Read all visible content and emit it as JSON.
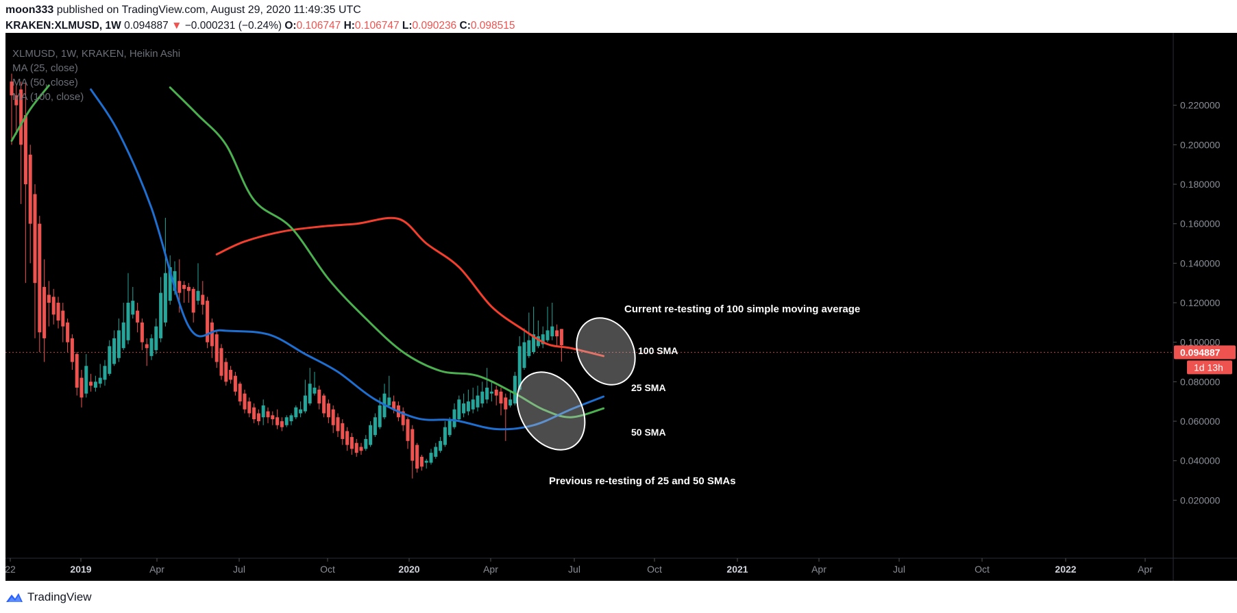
{
  "header": {
    "author": "moon333",
    "published_text": "published on TradingView.com, August 29, 2020 11:49:35 UTC",
    "symbol": "KRAKEN:XLMUSD,",
    "timeframe": "1W",
    "last_price": "0.094887",
    "change_arrow": "▼",
    "change": "−0.000231 (−0.24%)",
    "open_label": "O:",
    "open": "0.106747",
    "high_label": "H:",
    "high": "0.106747",
    "low_label": "L:",
    "low": "0.090236",
    "close_label": "C:",
    "close": "0.098515"
  },
  "footer": {
    "brand": "TradingView"
  },
  "colors": {
    "background": "#000000",
    "up": "#26a69a",
    "down": "#ef5350",
    "ma25": "#1e6fd0",
    "ma50": "#4caf50",
    "ma100": "#f23f2e"
  },
  "chart_data": {
    "type": "candlestick",
    "style": "Heikin Ashi",
    "legend": [
      "XLMUSD, 1W, KRAKEN, Heikin Ashi",
      "MA (25, close)",
      "MA (50, close)",
      "MA (100, close)"
    ],
    "x_ticks": [
      "22",
      "2019",
      "Apr",
      "Jul",
      "Oct",
      "2020",
      "Apr",
      "Jul",
      "Oct",
      "2021",
      "Apr",
      "Jul",
      "Oct",
      "2022",
      "Apr"
    ],
    "y_ticks": [
      "0.220000",
      "0.200000",
      "0.180000",
      "0.160000",
      "0.140000",
      "0.120000",
      "0.100000",
      "0.080000",
      "0.060000",
      "0.040000",
      "0.020000"
    ],
    "ylim": [
      0.0,
      0.228
    ],
    "price_label": "0.094887",
    "countdown_label": "1d 13h",
    "current_price": 0.094887,
    "candles": [
      {
        "o": 0.232,
        "h": 0.236,
        "l": 0.2,
        "c": 0.225
      },
      {
        "o": 0.225,
        "h": 0.23,
        "l": 0.205,
        "c": 0.22
      },
      {
        "o": 0.228,
        "h": 0.232,
        "l": 0.17,
        "c": 0.2
      },
      {
        "o": 0.215,
        "h": 0.232,
        "l": 0.13,
        "c": 0.18
      },
      {
        "o": 0.195,
        "h": 0.2,
        "l": 0.14,
        "c": 0.16
      },
      {
        "o": 0.175,
        "h": 0.18,
        "l": 0.102,
        "c": 0.13
      },
      {
        "o": 0.16,
        "h": 0.164,
        "l": 0.095,
        "c": 0.105
      },
      {
        "o": 0.128,
        "h": 0.142,
        "l": 0.09,
        "c": 0.102
      },
      {
        "o": 0.124,
        "h": 0.131,
        "l": 0.108,
        "c": 0.12
      },
      {
        "o": 0.123,
        "h": 0.127,
        "l": 0.109,
        "c": 0.114
      },
      {
        "o": 0.12,
        "h": 0.123,
        "l": 0.107,
        "c": 0.111
      },
      {
        "o": 0.116,
        "h": 0.12,
        "l": 0.1,
        "c": 0.108
      },
      {
        "o": 0.11,
        "h": 0.112,
        "l": 0.095,
        "c": 0.1
      },
      {
        "o": 0.102,
        "h": 0.104,
        "l": 0.086,
        "c": 0.09
      },
      {
        "o": 0.094,
        "h": 0.095,
        "l": 0.073,
        "c": 0.077
      },
      {
        "o": 0.082,
        "h": 0.086,
        "l": 0.067,
        "c": 0.072
      },
      {
        "o": 0.074,
        "h": 0.094,
        "l": 0.072,
        "c": 0.088
      },
      {
        "o": 0.08,
        "h": 0.084,
        "l": 0.075,
        "c": 0.078
      },
      {
        "o": 0.077,
        "h": 0.083,
        "l": 0.075,
        "c": 0.08
      },
      {
        "o": 0.079,
        "h": 0.089,
        "l": 0.077,
        "c": 0.082
      },
      {
        "o": 0.081,
        "h": 0.091,
        "l": 0.078,
        "c": 0.088
      },
      {
        "o": 0.084,
        "h": 0.101,
        "l": 0.083,
        "c": 0.098
      },
      {
        "o": 0.089,
        "h": 0.106,
        "l": 0.088,
        "c": 0.102
      },
      {
        "o": 0.092,
        "h": 0.112,
        "l": 0.09,
        "c": 0.106
      },
      {
        "o": 0.097,
        "h": 0.12,
        "l": 0.096,
        "c": 0.11
      },
      {
        "o": 0.101,
        "h": 0.135,
        "l": 0.099,
        "c": 0.12
      },
      {
        "o": 0.114,
        "h": 0.128,
        "l": 0.112,
        "c": 0.121
      },
      {
        "o": 0.116,
        "h": 0.12,
        "l": 0.105,
        "c": 0.11
      },
      {
        "o": 0.11,
        "h": 0.112,
        "l": 0.096,
        "c": 0.1
      },
      {
        "o": 0.099,
        "h": 0.102,
        "l": 0.088,
        "c": 0.097
      },
      {
        "o": 0.093,
        "h": 0.104,
        "l": 0.091,
        "c": 0.102
      },
      {
        "o": 0.096,
        "h": 0.112,
        "l": 0.094,
        "c": 0.108
      },
      {
        "o": 0.102,
        "h": 0.133,
        "l": 0.1,
        "c": 0.125
      },
      {
        "o": 0.11,
        "h": 0.163,
        "l": 0.108,
        "c": 0.135
      },
      {
        "o": 0.121,
        "h": 0.144,
        "l": 0.119,
        "c": 0.138
      },
      {
        "o": 0.126,
        "h": 0.141,
        "l": 0.124,
        "c": 0.136
      },
      {
        "o": 0.131,
        "h": 0.142,
        "l": 0.115,
        "c": 0.125
      },
      {
        "o": 0.129,
        "h": 0.131,
        "l": 0.12,
        "c": 0.127
      },
      {
        "o": 0.128,
        "h": 0.13,
        "l": 0.12,
        "c": 0.126
      },
      {
        "o": 0.127,
        "h": 0.128,
        "l": 0.11,
        "c": 0.115
      },
      {
        "o": 0.121,
        "h": 0.14,
        "l": 0.119,
        "c": 0.126
      },
      {
        "o": 0.124,
        "h": 0.131,
        "l": 0.114,
        "c": 0.119
      },
      {
        "o": 0.121,
        "h": 0.123,
        "l": 0.097,
        "c": 0.1
      },
      {
        "o": 0.11,
        "h": 0.112,
        "l": 0.092,
        "c": 0.098
      },
      {
        "o": 0.104,
        "h": 0.106,
        "l": 0.087,
        "c": 0.09
      },
      {
        "o": 0.097,
        "h": 0.099,
        "l": 0.081,
        "c": 0.083
      },
      {
        "o": 0.09,
        "h": 0.092,
        "l": 0.078,
        "c": 0.08
      },
      {
        "o": 0.086,
        "h": 0.088,
        "l": 0.079,
        "c": 0.081
      },
      {
        "o": 0.083,
        "h": 0.085,
        "l": 0.073,
        "c": 0.075
      },
      {
        "o": 0.079,
        "h": 0.08,
        "l": 0.068,
        "c": 0.07
      },
      {
        "o": 0.074,
        "h": 0.076,
        "l": 0.064,
        "c": 0.066
      },
      {
        "o": 0.07,
        "h": 0.072,
        "l": 0.062,
        "c": 0.064
      },
      {
        "o": 0.067,
        "h": 0.069,
        "l": 0.059,
        "c": 0.061
      },
      {
        "o": 0.064,
        "h": 0.066,
        "l": 0.058,
        "c": 0.06
      },
      {
        "o": 0.062,
        "h": 0.071,
        "l": 0.058,
        "c": 0.068
      },
      {
        "o": 0.065,
        "h": 0.067,
        "l": 0.059,
        "c": 0.062
      },
      {
        "o": 0.063,
        "h": 0.065,
        "l": 0.058,
        "c": 0.061
      },
      {
        "o": 0.062,
        "h": 0.066,
        "l": 0.056,
        "c": 0.058
      },
      {
        "o": 0.06,
        "h": 0.062,
        "l": 0.055,
        "c": 0.057
      },
      {
        "o": 0.058,
        "h": 0.063,
        "l": 0.057,
        "c": 0.062
      },
      {
        "o": 0.06,
        "h": 0.064,
        "l": 0.058,
        "c": 0.063
      },
      {
        "o": 0.062,
        "h": 0.068,
        "l": 0.061,
        "c": 0.067
      },
      {
        "o": 0.064,
        "h": 0.07,
        "l": 0.062,
        "c": 0.066
      },
      {
        "o": 0.065,
        "h": 0.081,
        "l": 0.064,
        "c": 0.073
      },
      {
        "o": 0.069,
        "h": 0.087,
        "l": 0.068,
        "c": 0.079
      },
      {
        "o": 0.074,
        "h": 0.085,
        "l": 0.073,
        "c": 0.077
      },
      {
        "o": 0.076,
        "h": 0.078,
        "l": 0.066,
        "c": 0.069
      },
      {
        "o": 0.073,
        "h": 0.074,
        "l": 0.062,
        "c": 0.064
      },
      {
        "o": 0.069,
        "h": 0.071,
        "l": 0.059,
        "c": 0.062
      },
      {
        "o": 0.066,
        "h": 0.068,
        "l": 0.054,
        "c": 0.058
      },
      {
        "o": 0.062,
        "h": 0.064,
        "l": 0.052,
        "c": 0.055
      },
      {
        "o": 0.059,
        "h": 0.061,
        "l": 0.048,
        "c": 0.051
      },
      {
        "o": 0.055,
        "h": 0.057,
        "l": 0.045,
        "c": 0.048
      },
      {
        "o": 0.052,
        "h": 0.054,
        "l": 0.043,
        "c": 0.046
      },
      {
        "o": 0.049,
        "h": 0.051,
        "l": 0.042,
        "c": 0.044
      },
      {
        "o": 0.047,
        "h": 0.049,
        "l": 0.043,
        "c": 0.045
      },
      {
        "o": 0.046,
        "h": 0.053,
        "l": 0.045,
        "c": 0.051
      },
      {
        "o": 0.048,
        "h": 0.06,
        "l": 0.047,
        "c": 0.058
      },
      {
        "o": 0.053,
        "h": 0.064,
        "l": 0.052,
        "c": 0.062
      },
      {
        "o": 0.057,
        "h": 0.072,
        "l": 0.056,
        "c": 0.068
      },
      {
        "o": 0.062,
        "h": 0.079,
        "l": 0.061,
        "c": 0.074
      },
      {
        "o": 0.068,
        "h": 0.083,
        "l": 0.067,
        "c": 0.072
      },
      {
        "o": 0.07,
        "h": 0.073,
        "l": 0.064,
        "c": 0.066
      },
      {
        "o": 0.068,
        "h": 0.07,
        "l": 0.06,
        "c": 0.062
      },
      {
        "o": 0.065,
        "h": 0.067,
        "l": 0.055,
        "c": 0.058
      },
      {
        "o": 0.061,
        "h": 0.062,
        "l": 0.046,
        "c": 0.05
      },
      {
        "o": 0.056,
        "h": 0.058,
        "l": 0.031,
        "c": 0.04
      },
      {
        "o": 0.048,
        "h": 0.049,
        "l": 0.034,
        "c": 0.036
      },
      {
        "o": 0.042,
        "h": 0.043,
        "l": 0.035,
        "c": 0.037
      },
      {
        "o": 0.039,
        "h": 0.041,
        "l": 0.036,
        "c": 0.04
      },
      {
        "o": 0.039,
        "h": 0.046,
        "l": 0.038,
        "c": 0.044
      },
      {
        "o": 0.042,
        "h": 0.049,
        "l": 0.041,
        "c": 0.047
      },
      {
        "o": 0.045,
        "h": 0.052,
        "l": 0.044,
        "c": 0.05
      },
      {
        "o": 0.048,
        "h": 0.06,
        "l": 0.047,
        "c": 0.057
      },
      {
        "o": 0.053,
        "h": 0.062,
        "l": 0.052,
        "c": 0.061
      },
      {
        "o": 0.057,
        "h": 0.069,
        "l": 0.056,
        "c": 0.066
      },
      {
        "o": 0.061,
        "h": 0.073,
        "l": 0.06,
        "c": 0.071
      },
      {
        "o": 0.064,
        "h": 0.074,
        "l": 0.062,
        "c": 0.069
      },
      {
        "o": 0.065,
        "h": 0.076,
        "l": 0.063,
        "c": 0.07
      },
      {
        "o": 0.066,
        "h": 0.077,
        "l": 0.064,
        "c": 0.071
      },
      {
        "o": 0.067,
        "h": 0.078,
        "l": 0.065,
        "c": 0.073
      },
      {
        "o": 0.069,
        "h": 0.08,
        "l": 0.067,
        "c": 0.075
      },
      {
        "o": 0.071,
        "h": 0.087,
        "l": 0.069,
        "c": 0.077
      },
      {
        "o": 0.074,
        "h": 0.08,
        "l": 0.07,
        "c": 0.075
      },
      {
        "o": 0.076,
        "h": 0.078,
        "l": 0.068,
        "c": 0.073
      },
      {
        "o": 0.075,
        "h": 0.077,
        "l": 0.063,
        "c": 0.069
      },
      {
        "o": 0.072,
        "h": 0.074,
        "l": 0.05,
        "c": 0.066
      },
      {
        "o": 0.068,
        "h": 0.075,
        "l": 0.067,
        "c": 0.071
      },
      {
        "o": 0.069,
        "h": 0.085,
        "l": 0.068,
        "c": 0.083
      },
      {
        "o": 0.076,
        "h": 0.103,
        "l": 0.075,
        "c": 0.098
      },
      {
        "o": 0.087,
        "h": 0.107,
        "l": 0.086,
        "c": 0.1
      },
      {
        "o": 0.093,
        "h": 0.115,
        "l": 0.092,
        "c": 0.101
      },
      {
        "o": 0.095,
        "h": 0.118,
        "l": 0.094,
        "c": 0.104
      },
      {
        "o": 0.098,
        "h": 0.111,
        "l": 0.097,
        "c": 0.103
      },
      {
        "o": 0.099,
        "h": 0.108,
        "l": 0.097,
        "c": 0.104
      },
      {
        "o": 0.101,
        "h": 0.118,
        "l": 0.1,
        "c": 0.106
      },
      {
        "o": 0.103,
        "h": 0.12,
        "l": 0.101,
        "c": 0.108
      },
      {
        "o": 0.106,
        "h": 0.109,
        "l": 0.098,
        "c": 0.103
      },
      {
        "o": 0.1067,
        "h": 0.1067,
        "l": 0.0902,
        "c": 0.0985
      }
    ],
    "ma25_knots": [
      [
        17,
        0.228
      ],
      [
        23,
        0.206
      ],
      [
        30,
        0.168
      ],
      [
        38,
        0.108
      ],
      [
        45,
        0.106
      ],
      [
        55,
        0.104
      ],
      [
        63,
        0.094
      ],
      [
        70,
        0.085
      ],
      [
        78,
        0.071
      ],
      [
        87,
        0.0615
      ],
      [
        95,
        0.0605
      ],
      [
        104,
        0.056
      ],
      [
        112,
        0.058
      ],
      [
        120,
        0.066
      ],
      [
        127,
        0.0725
      ]
    ],
    "ma50_knots": [
      [
        34,
        0.229
      ],
      [
        40,
        0.215
      ],
      [
        46,
        0.2
      ],
      [
        52,
        0.172
      ],
      [
        60,
        0.158
      ],
      [
        68,
        0.132
      ],
      [
        76,
        0.112
      ],
      [
        84,
        0.095
      ],
      [
        92,
        0.0855
      ],
      [
        100,
        0.083
      ],
      [
        108,
        0.074
      ],
      [
        114,
        0.066
      ],
      [
        120,
        0.062
      ],
      [
        127,
        0.0665
      ]
    ],
    "ma50_lead_knots": [
      [
        0,
        0.202
      ],
      [
        4,
        0.218
      ],
      [
        8,
        0.23
      ]
    ],
    "ma100_knots": [
      [
        44,
        0.1445
      ],
      [
        50,
        0.151
      ],
      [
        58,
        0.156
      ],
      [
        66,
        0.1585
      ],
      [
        74,
        0.16
      ],
      [
        83,
        0.1625
      ],
      [
        89,
        0.15
      ],
      [
        96,
        0.138
      ],
      [
        103,
        0.118
      ],
      [
        110,
        0.106
      ],
      [
        115,
        0.099
      ],
      [
        120,
        0.097
      ],
      [
        127,
        0.093
      ]
    ],
    "annotations": [
      {
        "text": "Current re-testing of 100 simple moving average"
      },
      {
        "text": "100 SMA"
      },
      {
        "text": "25 SMA"
      },
      {
        "text": "50 SMA"
      },
      {
        "text": "Previous re-testing of 25 and 50 SMAs"
      }
    ]
  }
}
